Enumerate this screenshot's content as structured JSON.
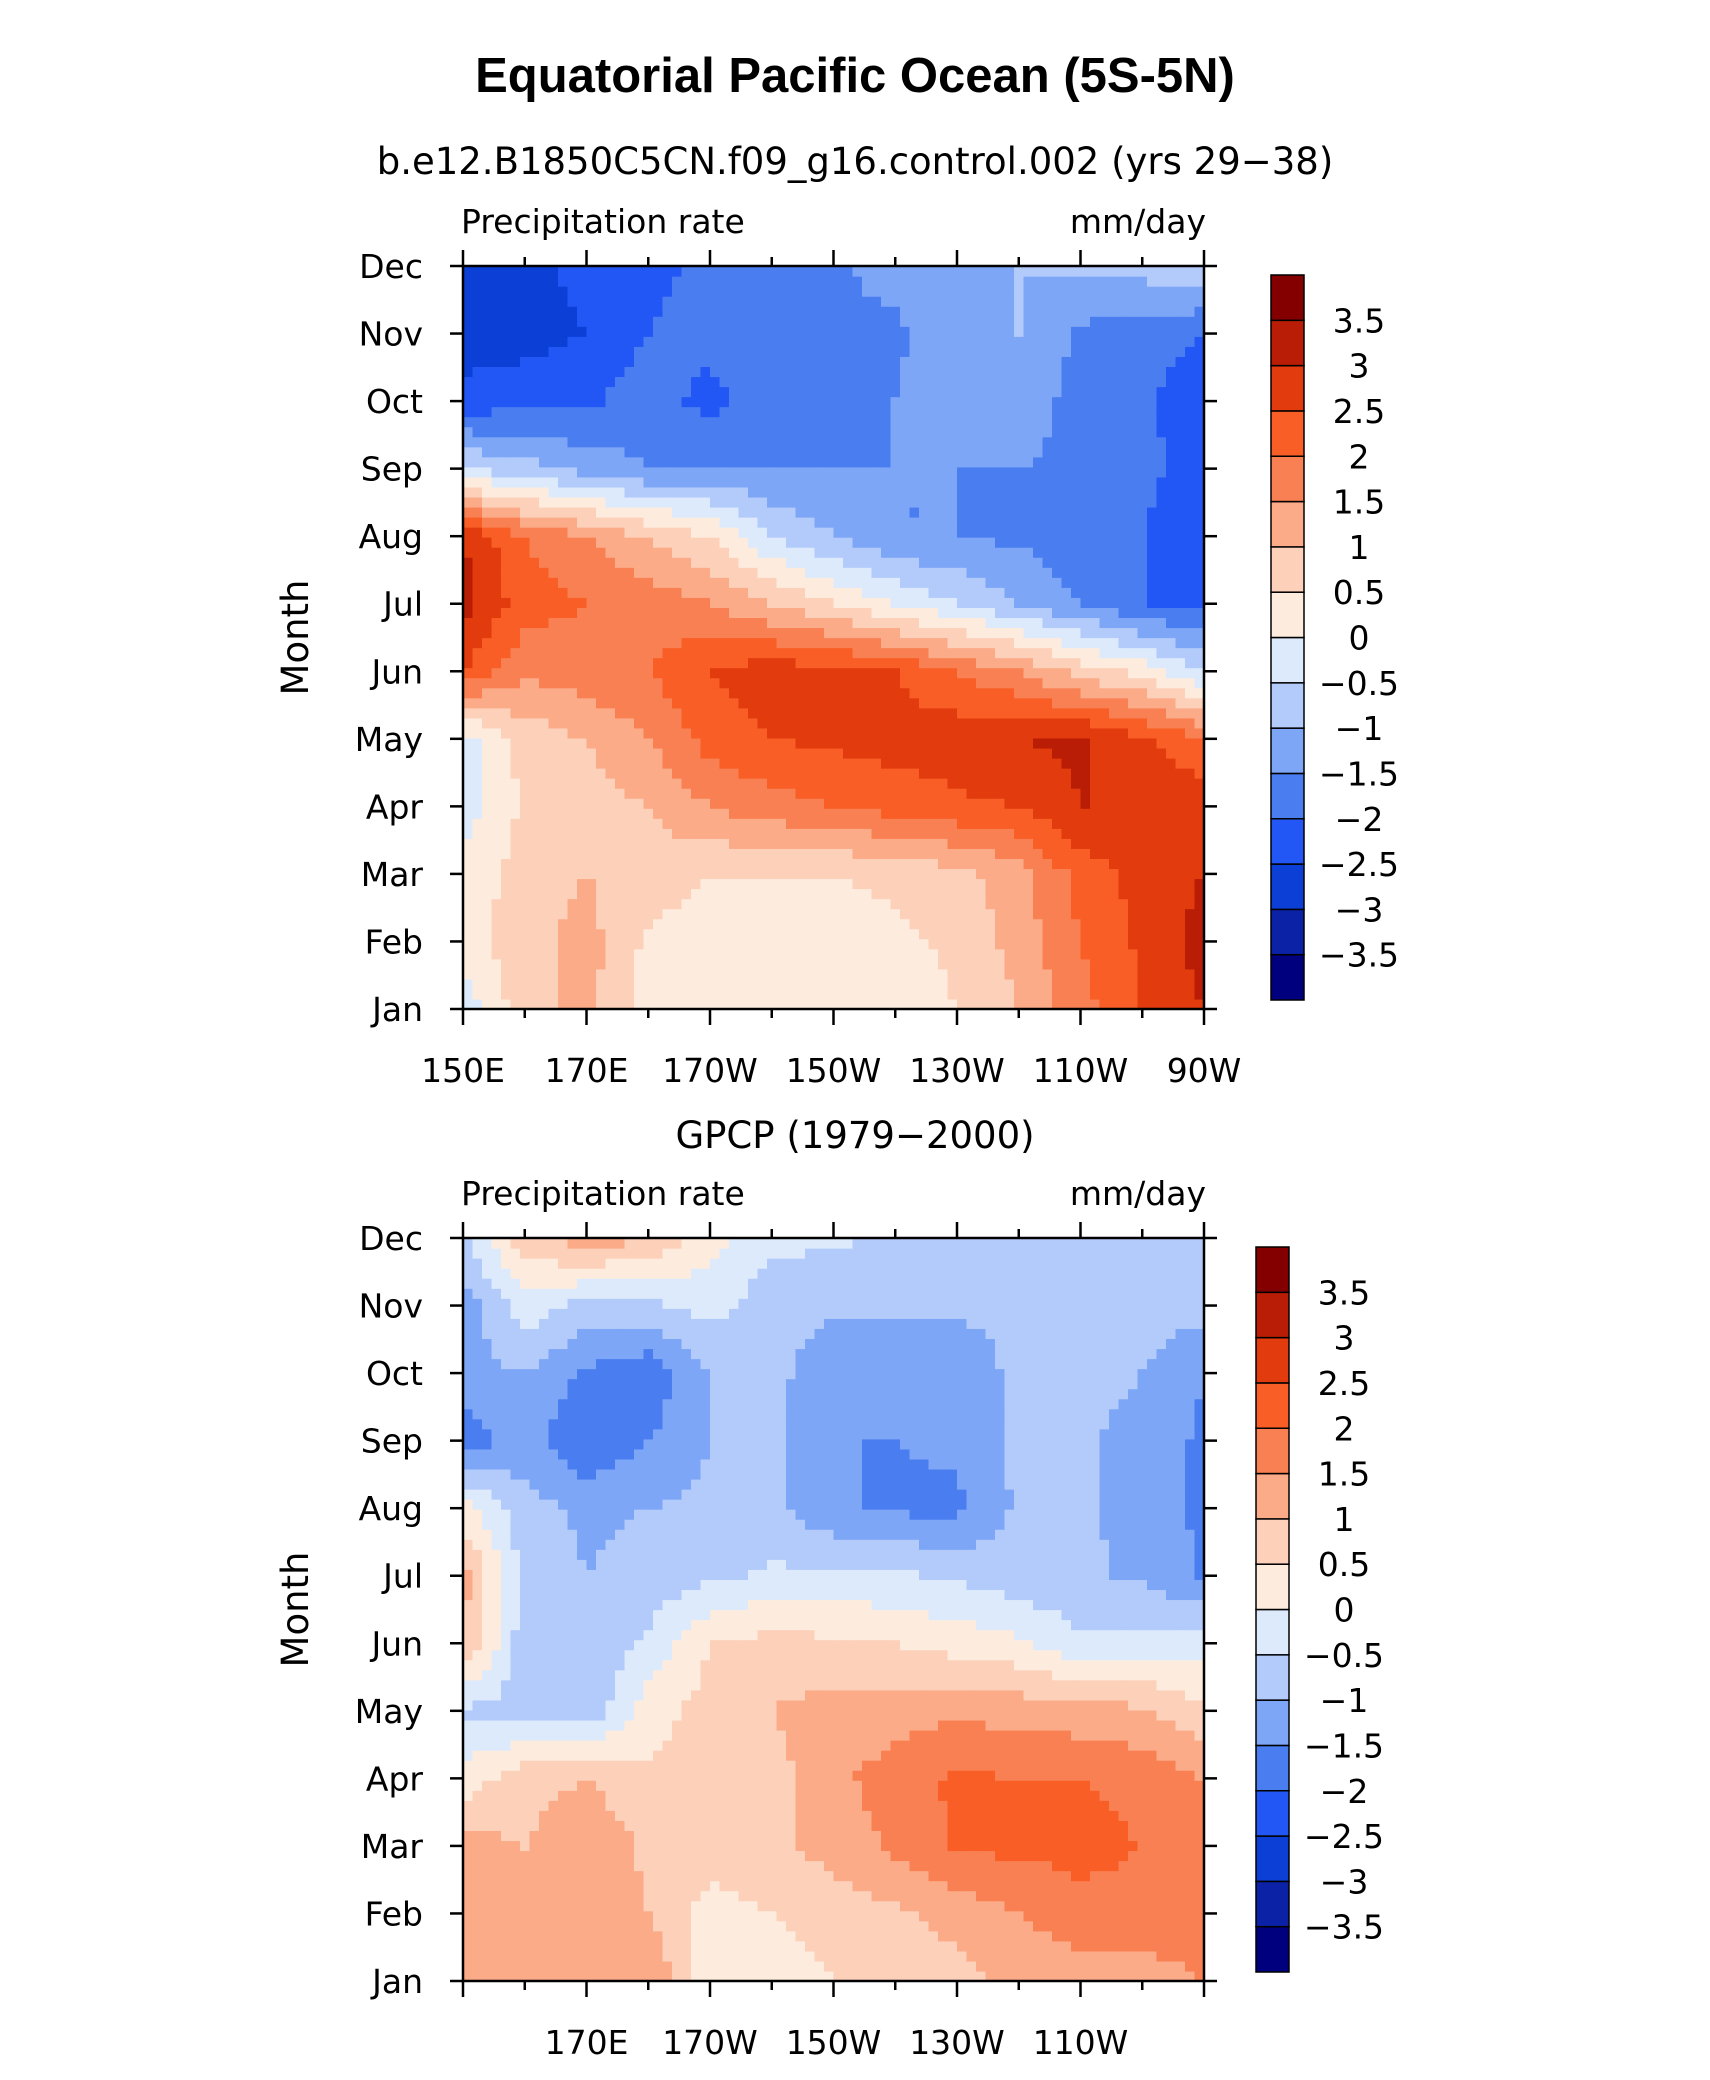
{
  "title": "Equatorial Pacific Ocean (5S-5N)",
  "colors": [
    "#00007f",
    "#0b21a6",
    "#0b3fd6",
    "#2257f5",
    "#4a7ef0",
    "#7ea6f7",
    "#b3cbfb",
    "#dceafc",
    "#fdecde",
    "#fdd0ba",
    "#fcab88",
    "#f98052",
    "#f85e25",
    "#e23b0d",
    "#b91d05",
    "#840000"
  ],
  "chart_data": [
    {
      "type": "heatmap",
      "title": "b.e12.B1850C5CN.f09_g16.control.002 (yrs 29−38)",
      "left_label": "Precipitation rate",
      "right_label": "mm/day",
      "ylabel": "Month",
      "xlabel": "",
      "x": [
        150,
        160,
        170,
        180,
        190,
        200,
        210,
        220,
        230,
        240,
        250,
        260,
        270
      ],
      "xticklabels": [
        "150E",
        "170E",
        "170W",
        "150W",
        "130W",
        "110W",
        "90W"
      ],
      "xticks": [
        150,
        170,
        190,
        210,
        230,
        250,
        270
      ],
      "y": [
        "Jan",
        "Feb",
        "Mar",
        "Apr",
        "May",
        "Jun",
        "Jul",
        "Aug",
        "Sep",
        "Oct",
        "Nov",
        "Dec"
      ],
      "yticklabels": [
        "Jan",
        "Feb",
        "Mar",
        "Apr",
        "May",
        "Jun",
        "Jul",
        "Aug",
        "Sep",
        "Oct",
        "Nov",
        "Dec"
      ],
      "z": [
        [
          -0.3,
          0.8,
          1.2,
          0.2,
          0.1,
          0.0,
          0.1,
          0.2,
          0.5,
          1.0,
          1.8,
          2.5,
          3.0
        ],
        [
          0.3,
          0.8,
          1.2,
          0.4,
          0.2,
          0.2,
          0.2,
          0.4,
          0.6,
          1.2,
          2.0,
          2.6,
          3.2
        ],
        [
          0.2,
          0.7,
          1.0,
          0.8,
          0.5,
          0.5,
          0.5,
          0.6,
          0.8,
          1.3,
          2.2,
          2.7,
          3.0
        ],
        [
          -0.3,
          0.6,
          0.8,
          1.0,
          1.5,
          1.8,
          2.0,
          2.2,
          2.4,
          2.5,
          3.0,
          3.0,
          2.9
        ],
        [
          -0.3,
          0.7,
          1.0,
          1.5,
          2.2,
          2.5,
          2.6,
          2.7,
          2.8,
          3.0,
          3.1,
          2.6,
          2.0
        ],
        [
          2.5,
          1.6,
          1.8,
          2.0,
          2.5,
          2.8,
          2.7,
          2.5,
          2.0,
          1.5,
          0.8,
          0.3,
          -0.5
        ],
        [
          3.2,
          2.2,
          2.0,
          1.8,
          1.5,
          1.0,
          0.5,
          0.0,
          -0.5,
          -1.0,
          -1.5,
          -2.0,
          -2.2
        ],
        [
          3.0,
          2.0,
          1.5,
          1.0,
          0.5,
          -0.5,
          -1.0,
          -1.5,
          -1.5,
          -1.6,
          -1.8,
          -2.0,
          -2.5
        ],
        [
          -0.5,
          -0.8,
          -1.2,
          -1.5,
          -1.5,
          -1.5,
          -1.5,
          -1.5,
          -1.5,
          -1.5,
          -1.6,
          -1.8,
          -2.4
        ],
        [
          -2.3,
          -2.2,
          -2.1,
          -1.7,
          -2.2,
          -1.6,
          -1.7,
          -1.5,
          -1.0,
          -1.2,
          -1.7,
          -1.9,
          -2.3
        ],
        [
          -2.8,
          -2.7,
          -2.5,
          -2.0,
          -1.8,
          -1.7,
          -1.6,
          -1.6,
          -1.2,
          -1.0,
          -1.6,
          -1.8,
          -2.0
        ],
        [
          -2.7,
          -2.6,
          -2.4,
          -2.1,
          -1.9,
          -1.7,
          -1.6,
          -1.3,
          -1.0,
          -1.0,
          -0.9,
          -0.8,
          -0.5
        ]
      ],
      "colorbar_labels": [
        "3.5",
        "3",
        "2.5",
        "2",
        "1.5",
        "1",
        "0.5",
        "0",
        "−0.5",
        "−1",
        "−1.5",
        "−2",
        "−2.5",
        "−3",
        "−3.5"
      ],
      "levels": [
        -3.5,
        -3,
        -2.5,
        -2,
        -1.5,
        -1,
        -0.5,
        0,
        0.5,
        1,
        1.5,
        2,
        2.5,
        3,
        3.5
      ]
    },
    {
      "type": "heatmap",
      "title": "GPCP (1979−2000)",
      "left_label": "Precipitation rate",
      "right_label": "mm/day",
      "ylabel": "Month",
      "xlabel": "",
      "x": [
        150,
        160,
        170,
        180,
        190,
        200,
        210,
        220,
        230,
        240,
        250,
        260,
        270
      ],
      "xticklabels": [
        "170E",
        "170W",
        "150W",
        "130W",
        "110W"
      ],
      "xticks": [
        170,
        190,
        210,
        230,
        250
      ],
      "y": [
        "Jan",
        "Feb",
        "Mar",
        "Apr",
        "May",
        "Jun",
        "Jul",
        "Aug",
        "Sep",
        "Oct",
        "Nov",
        "Dec"
      ],
      "yticklabels": [
        "Jan",
        "Feb",
        "Mar",
        "Apr",
        "May",
        "Jun",
        "Jul",
        "Aug",
        "Sep",
        "Oct",
        "Nov",
        "Dec"
      ],
      "z": [
        [
          1.2,
          1.3,
          1.2,
          1.5,
          0.2,
          0.3,
          0.5,
          0.7,
          0.8,
          1.2,
          1.2,
          1.3,
          1.5
        ],
        [
          1.3,
          1.2,
          1.3,
          1.0,
          0.3,
          0.5,
          0.7,
          0.9,
          1.2,
          1.5,
          1.8,
          1.8,
          1.7
        ],
        [
          1.2,
          1.0,
          1.4,
          0.9,
          0.7,
          0.9,
          1.2,
          1.6,
          2.1,
          2.1,
          2.2,
          2.0,
          1.8
        ],
        [
          0.2,
          0.8,
          1.0,
          0.6,
          0.7,
          0.8,
          1.4,
          1.7,
          2.1,
          2.0,
          2.0,
          1.8,
          1.5
        ],
        [
          -0.6,
          -0.7,
          -0.9,
          0.3,
          0.7,
          1.0,
          1.2,
          1.3,
          1.4,
          1.3,
          1.2,
          1.1,
          0.6
        ],
        [
          1.0,
          -0.8,
          -1.0,
          -0.4,
          0.5,
          0.7,
          0.6,
          0.5,
          0.3,
          0.1,
          -0.4,
          -0.3,
          -0.2
        ],
        [
          1.2,
          -0.7,
          -1.0,
          -0.8,
          -0.6,
          -0.4,
          -0.4,
          -0.4,
          -0.6,
          -0.8,
          -0.9,
          -1.1,
          -1.6
        ],
        [
          0.2,
          -0.8,
          -1.1,
          -1.0,
          -0.9,
          -0.9,
          -1.4,
          -1.6,
          -1.6,
          -0.9,
          -0.9,
          -1.2,
          -1.6
        ],
        [
          -1.8,
          -1.3,
          -2.0,
          -1.5,
          -1.0,
          -0.9,
          -1.5,
          -1.5,
          -1.4,
          -0.9,
          -0.9,
          -1.2,
          -1.6
        ],
        [
          -1.2,
          -1.0,
          -1.6,
          -1.9,
          -1.0,
          -0.8,
          -1.4,
          -1.5,
          -1.5,
          -0.8,
          -0.8,
          -1.0,
          -1.5
        ],
        [
          -1.3,
          -0.2,
          -0.7,
          -0.6,
          -0.3,
          -0.8,
          -0.9,
          -0.9,
          -0.9,
          -0.8,
          -0.8,
          -0.8,
          -0.8
        ],
        [
          -0.6,
          0.8,
          1.3,
          1.0,
          0.2,
          -0.4,
          -0.4,
          -0.6,
          -0.6,
          -0.6,
          -0.6,
          -0.6,
          -0.6
        ]
      ],
      "colorbar_labels": [
        "3.5",
        "3",
        "2.5",
        "2",
        "1.5",
        "1",
        "0.5",
        "0",
        "−0.5",
        "−1",
        "−1.5",
        "−2",
        "−2.5",
        "−3",
        "−3.5"
      ],
      "levels": [
        -3.5,
        -3,
        -2.5,
        -2,
        -1.5,
        -1,
        -0.5,
        0,
        0.5,
        1,
        1.5,
        2,
        2.5,
        3,
        3.5
      ]
    }
  ]
}
